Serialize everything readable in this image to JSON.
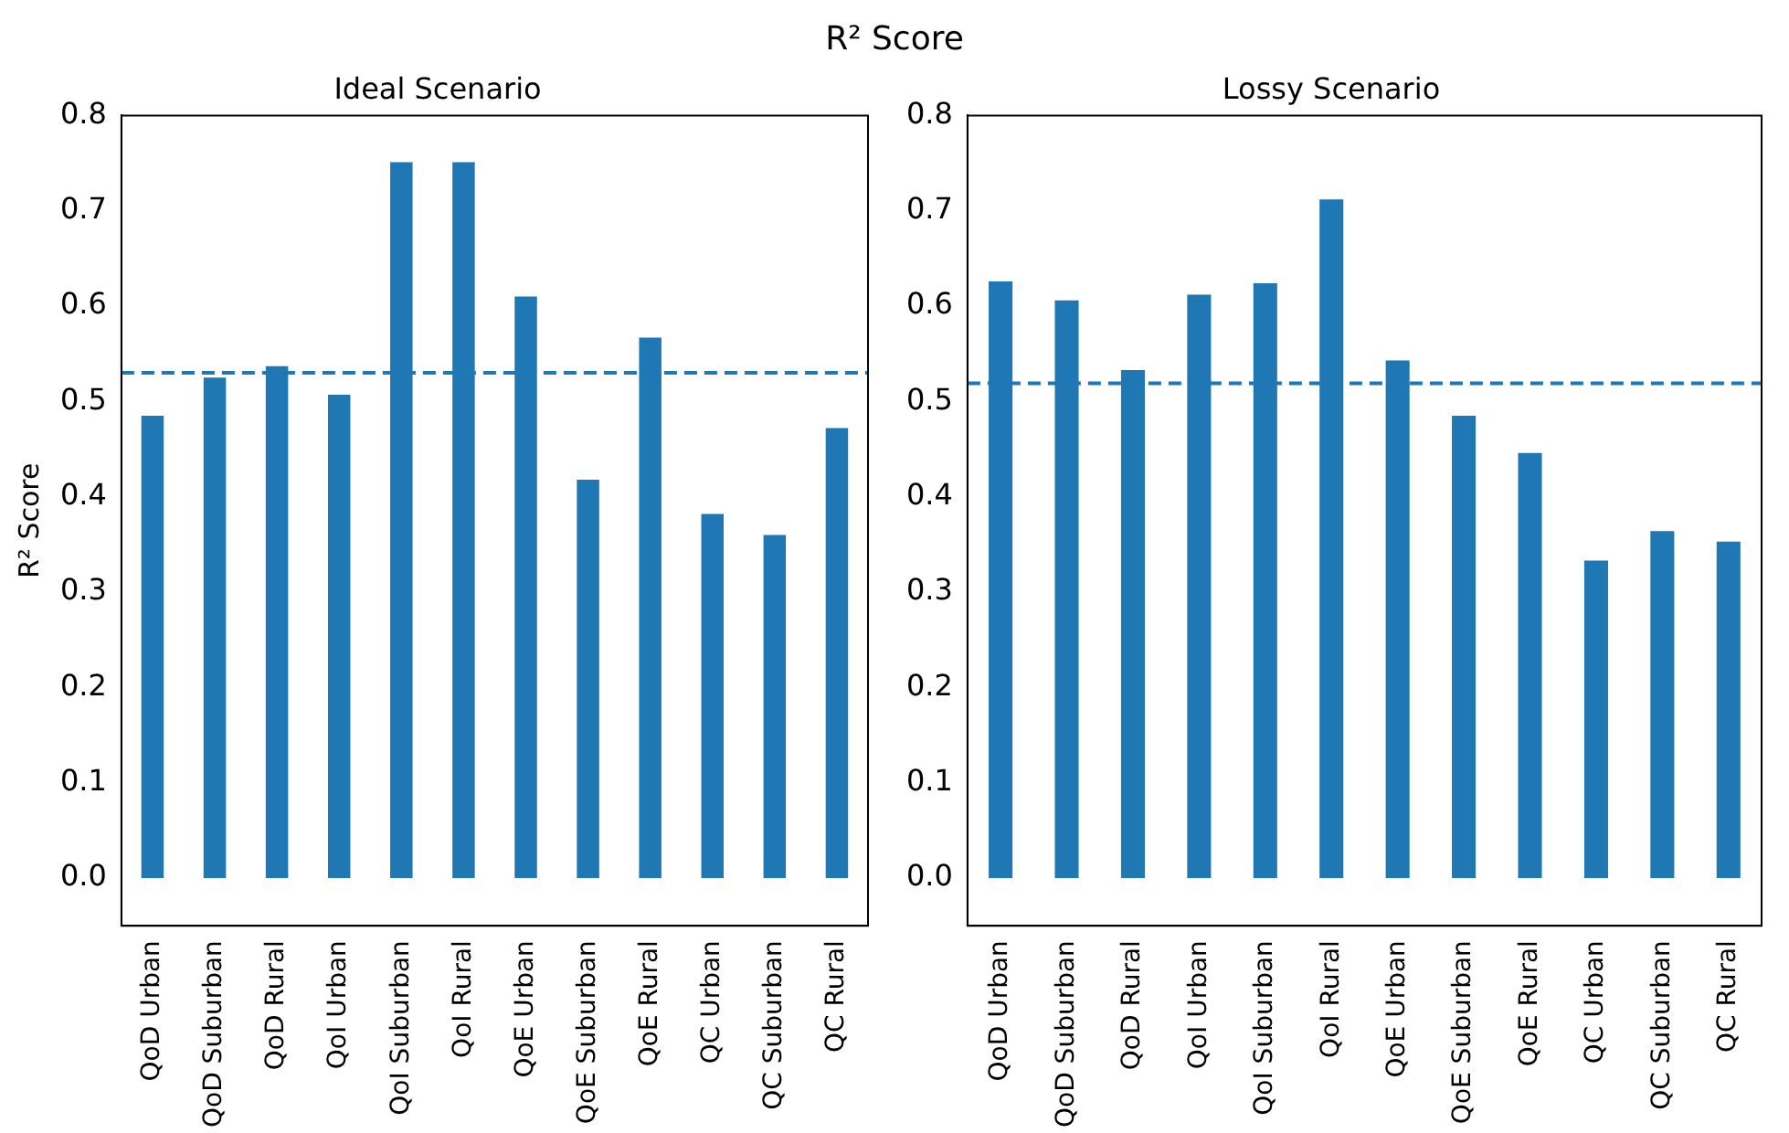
{
  "chart_data": [
    {
      "type": "bar",
      "title": "Ideal Scenario",
      "ylabel": "R² Score",
      "annotations": [
        "R² Score"
      ],
      "categories": [
        "QoD Urban",
        "QoD Suburban",
        "QoD Rural",
        "QoI Urban",
        "QoI Suburban",
        "QoI Rural",
        "QoE Urban",
        "QoE Suburban",
        "QoE Rural",
        "QC Urban",
        "QC Suburban",
        "QC Rural"
      ],
      "values": [
        0.485,
        0.525,
        0.537,
        0.507,
        0.751,
        0.751,
        0.61,
        0.418,
        0.567,
        0.382,
        0.36,
        0.472
      ],
      "color": "#1f77b4",
      "ylim": [
        -0.05,
        0.8
      ],
      "yticks": [
        {
          "value": 0,
          "label": "0.0"
        },
        0.1,
        0.2,
        0.3,
        0.4,
        0.5,
        0.6,
        0.7,
        0.8
      ],
      "ref_lines": [
        {
          "axis": "y",
          "value": 0.53,
          "color": "#1f77b4",
          "line_style": "dashed"
        }
      ],
      "grid": false,
      "legend": false
    },
    {
      "type": "bar",
      "title": "Lossy Scenario",
      "categories": [
        "QoD Urban",
        "QoD Suburban",
        "QoD Rural",
        "QoI Urban",
        "QoI Suburban",
        "QoI Rural",
        "QoE Urban",
        "QoE Suburban",
        "QoE Rural",
        "QC Urban",
        "QC Suburban",
        "QC Rural"
      ],
      "values": [
        0.626,
        0.606,
        0.533,
        0.612,
        0.624,
        0.712,
        0.543,
        0.485,
        0.446,
        0.333,
        0.364,
        0.353
      ],
      "color": "#1f77b4",
      "ylim": [
        -0.05,
        0.8
      ],
      "yticks": [
        {
          "value": 0,
          "label": "0.0"
        },
        0.1,
        0.2,
        0.3,
        0.4,
        0.5,
        0.6,
        0.7,
        0.8
      ],
      "ref_lines": [
        {
          "axis": "y",
          "value": 0.519,
          "color": "#1f77b4",
          "line_style": "dashed"
        }
      ],
      "grid": false,
      "legend": false
    }
  ]
}
